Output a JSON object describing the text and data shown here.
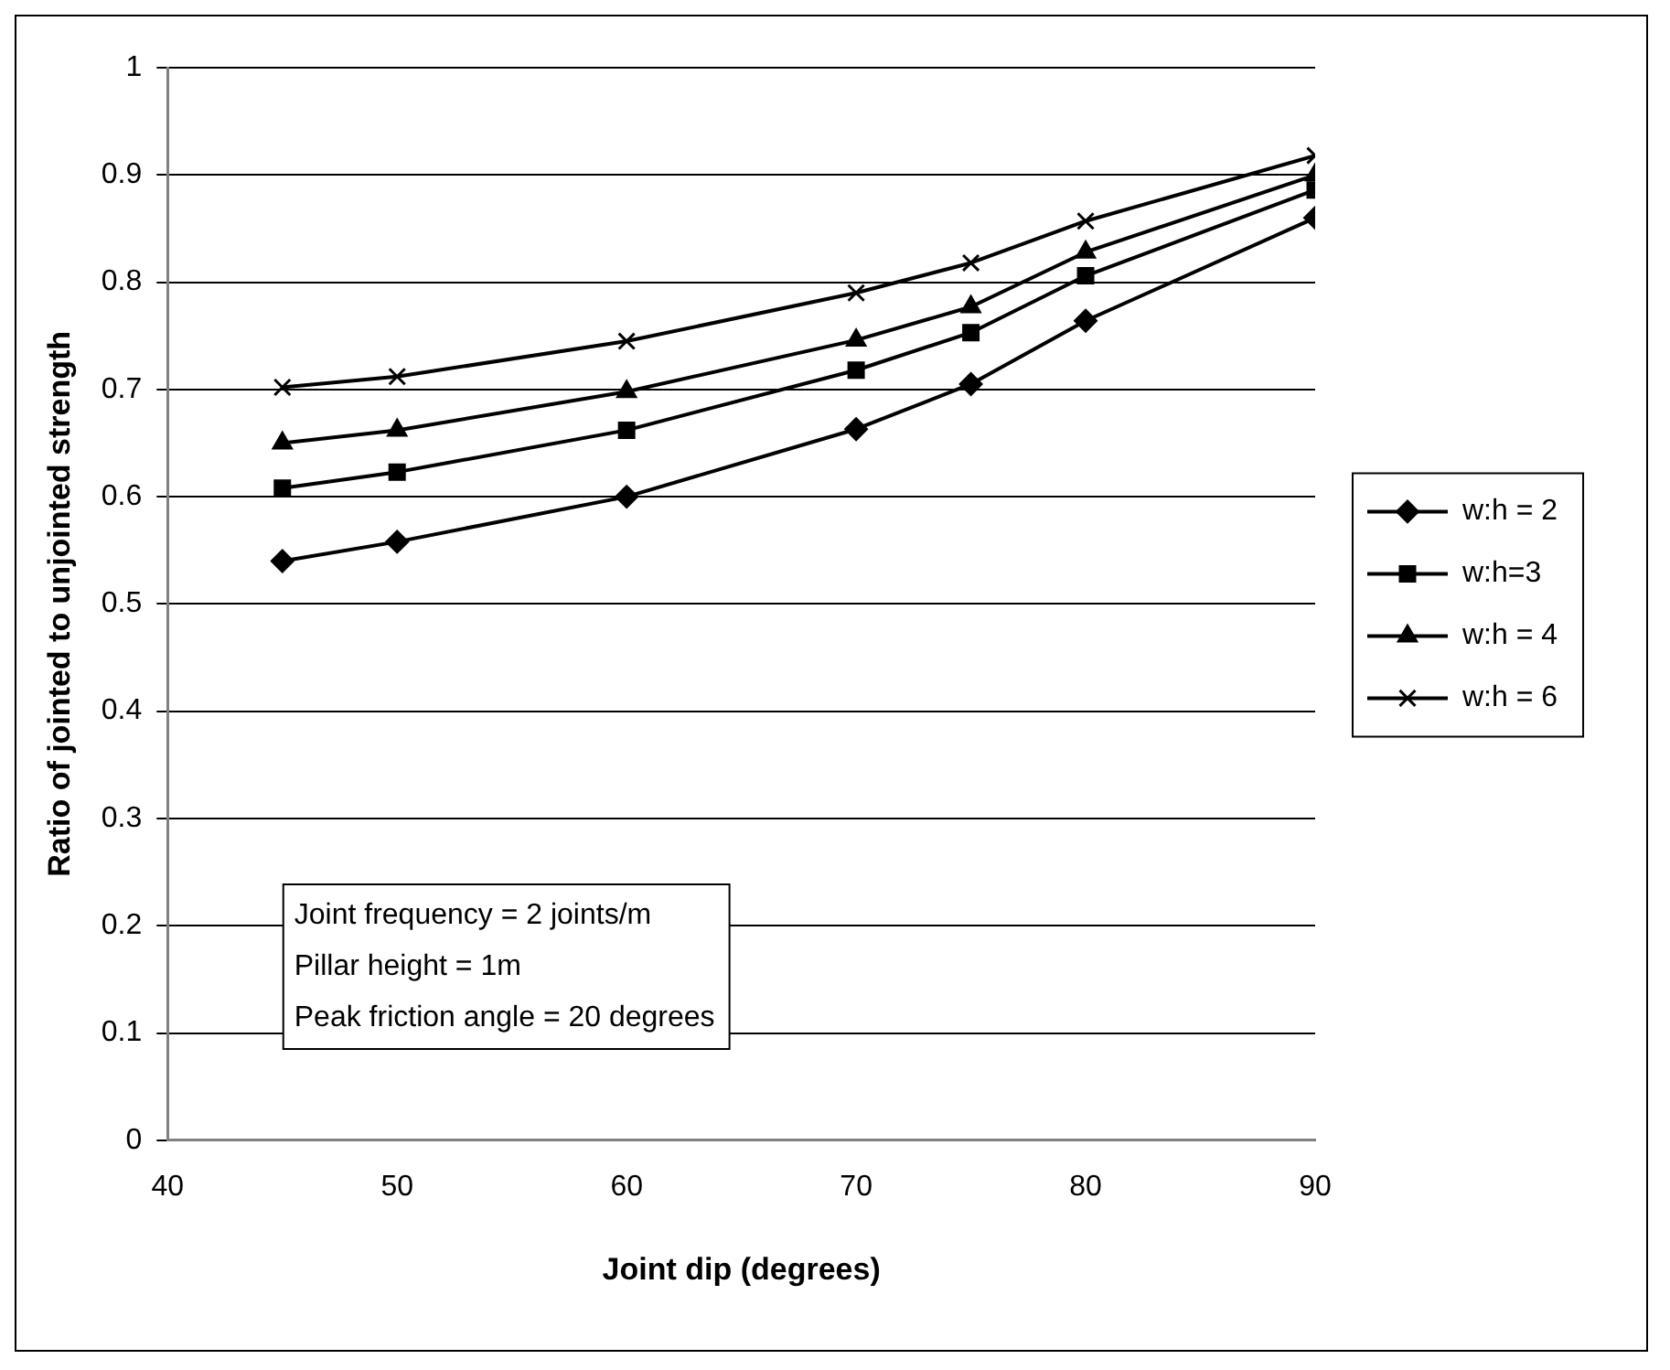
{
  "chart_data": {
    "type": "line",
    "xlabel": "Joint dip (degrees)",
    "ylabel": "Ratio of jointed to unjointed strength",
    "x": [
      45,
      50,
      60,
      70,
      75,
      80,
      90
    ],
    "series": [
      {
        "name": "w:h = 2",
        "color": "#000000",
        "marker": "diamond",
        "values": [
          0.54,
          0.558,
          0.6,
          0.663,
          0.705,
          0.764,
          0.86
        ]
      },
      {
        "name": "w:h=3",
        "color": "#000000",
        "marker": "square",
        "values": [
          0.608,
          0.623,
          0.662,
          0.718,
          0.753,
          0.806,
          0.886
        ]
      },
      {
        "name": "w:h = 4",
        "color": "#000000",
        "marker": "triangle",
        "values": [
          0.65,
          0.662,
          0.698,
          0.746,
          0.777,
          0.828,
          0.9
        ]
      },
      {
        "name": "w:h = 6",
        "color": "#000000",
        "marker": "cross",
        "values": [
          0.702,
          0.712,
          0.745,
          0.79,
          0.818,
          0.857,
          0.918
        ]
      }
    ],
    "xlim": [
      40,
      90
    ],
    "xticks": [
      40,
      50,
      60,
      70,
      80,
      90
    ],
    "ylim": [
      0,
      1
    ],
    "yticks": [
      0,
      0.1,
      0.2,
      0.3,
      0.4,
      0.5,
      0.6,
      0.7,
      0.8,
      0.9,
      1
    ],
    "grid": "y",
    "legend": "right",
    "line_style": "solid",
    "annotations": [
      "Joint frequency = 2 joints/m",
      "Pillar height = 1m",
      "Peak friction angle = 20 degrees"
    ]
  }
}
